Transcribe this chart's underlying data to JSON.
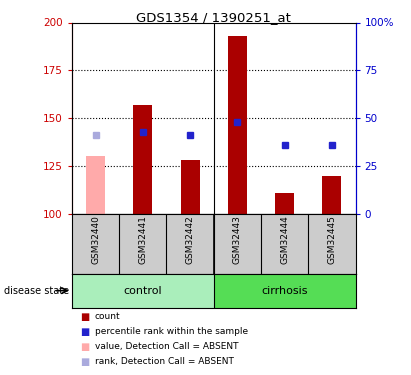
{
  "title": "GDS1354 / 1390251_at",
  "samples": [
    "GSM32440",
    "GSM32441",
    "GSM32442",
    "GSM32443",
    "GSM32444",
    "GSM32445"
  ],
  "bar_base": 100,
  "bar_tops_red": [
    null,
    157,
    128,
    193,
    111,
    120
  ],
  "bar_tops_pink": [
    130,
    null,
    null,
    null,
    null,
    null
  ],
  "blue_squares_y": [
    null,
    143,
    141,
    148,
    136,
    136
  ],
  "blue_squares_absent_y": [
    141,
    null,
    null,
    null,
    null,
    null
  ],
  "absent_sample": [
    true,
    false,
    false,
    false,
    false,
    false
  ],
  "ylim_left": [
    100,
    200
  ],
  "ylim_right": [
    0,
    100
  ],
  "yticks_left": [
    100,
    125,
    150,
    175,
    200
  ],
  "yticks_right": [
    0,
    25,
    50,
    75,
    100
  ],
  "ytick_labels_left": [
    "100",
    "125",
    "150",
    "175",
    "200"
  ],
  "ytick_labels_right": [
    "0",
    "25",
    "50",
    "75",
    "100%"
  ],
  "left_axis_color": "#cc0000",
  "right_axis_color": "#0000cc",
  "bar_red_color": "#aa0000",
  "bar_pink_color": "#ffaaaa",
  "blue_sq_color": "#2222cc",
  "blue_sq_absent_color": "#aaaadd",
  "control_group_color": "#aaeebb",
  "cirrhosis_group_color": "#55dd55",
  "bar_width": 0.4,
  "sample_bg_color": "#cccccc",
  "plot_bg_color": "#ffffff",
  "legend_items": [
    {
      "color": "#aa0000",
      "label": "count"
    },
    {
      "color": "#2222cc",
      "label": "percentile rank within the sample"
    },
    {
      "color": "#ffaaaa",
      "label": "value, Detection Call = ABSENT"
    },
    {
      "color": "#aaaadd",
      "label": "rank, Detection Call = ABSENT"
    }
  ]
}
